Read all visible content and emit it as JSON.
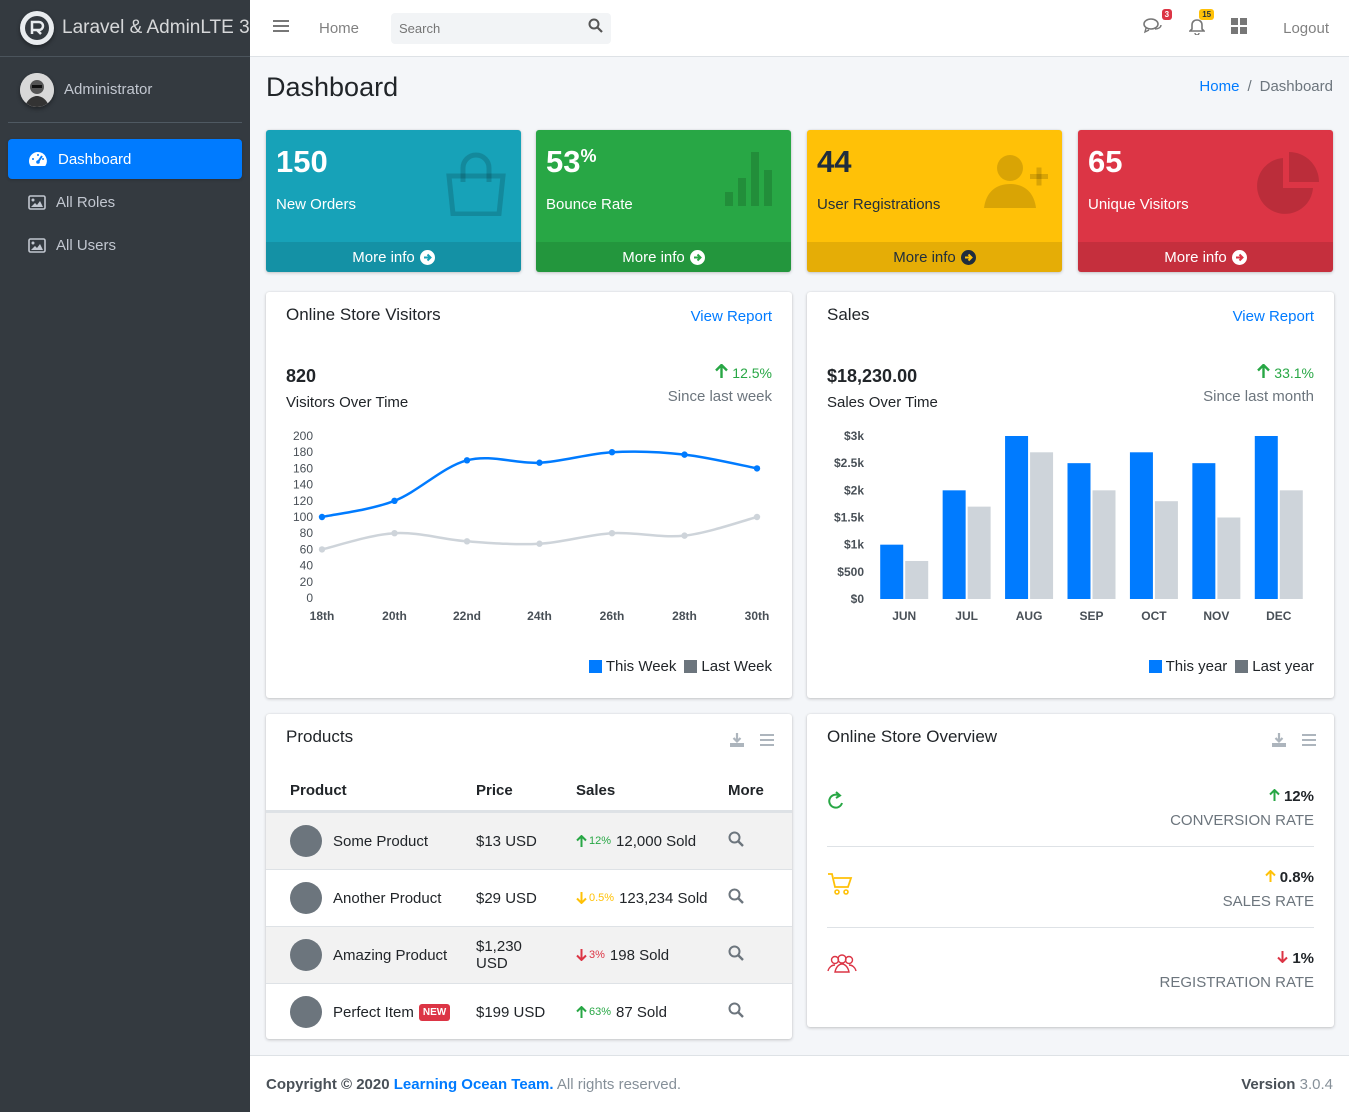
{
  "brand": {
    "title": "Laravel & AdminLTE 3"
  },
  "user": {
    "name": "Administrator"
  },
  "sidebar": {
    "items": [
      {
        "label": "Dashboard",
        "icon": "tachometer-icon"
      },
      {
        "label": "All Roles",
        "icon": "image-icon"
      },
      {
        "label": "All Users",
        "icon": "image-icon"
      }
    ]
  },
  "header": {
    "home": "Home",
    "search_placeholder": "Search",
    "messages_count": "3",
    "notifications_count": "15",
    "logout": "Logout"
  },
  "page": {
    "title": "Dashboard",
    "breadcrumb": [
      "Home",
      "Dashboard"
    ]
  },
  "boxes": [
    {
      "value": "150",
      "suffix": "",
      "label": "New Orders",
      "footer": "More info",
      "color": "#17a2b8"
    },
    {
      "value": "53",
      "suffix": "%",
      "label": "Bounce Rate",
      "footer": "More info",
      "color": "#28a745"
    },
    {
      "value": "44",
      "suffix": "",
      "label": "User Registrations",
      "footer": "More info",
      "color": "#ffc107"
    },
    {
      "value": "65",
      "suffix": "",
      "label": "Unique Visitors",
      "footer": "More info",
      "color": "#dc3545"
    }
  ],
  "visitors": {
    "title": "Online Store Visitors",
    "link": "View Report",
    "total": "820",
    "subtitle": "Visitors Over Time",
    "change": "12.5%",
    "since": "Since last week",
    "legend": [
      "This Week",
      "Last Week"
    ]
  },
  "sales": {
    "title": "Sales",
    "link": "View Report",
    "total": "$18,230.00",
    "subtitle": "Sales Over Time",
    "change": "33.1%",
    "since": "Since last month",
    "legend": [
      "This year",
      "Last year"
    ]
  },
  "chart_data": [
    {
      "type": "line",
      "x": [
        "18th",
        "20th",
        "22nd",
        "24th",
        "26th",
        "28th",
        "30th"
      ],
      "series": [
        {
          "name": "This Week",
          "values": [
            100,
            120,
            170,
            167,
            180,
            177,
            160
          ],
          "color": "#007bff"
        },
        {
          "name": "Last Week",
          "values": [
            60,
            80,
            70,
            67,
            80,
            77,
            100
          ],
          "color": "#ced4da"
        }
      ],
      "yticks": [
        0,
        20,
        40,
        60,
        80,
        100,
        120,
        140,
        160,
        180,
        200
      ],
      "ylim": [
        0,
        200
      ],
      "legend": "bottom-right"
    },
    {
      "type": "bar",
      "categories": [
        "JUN",
        "JUL",
        "AUG",
        "SEP",
        "OCT",
        "NOV",
        "DEC"
      ],
      "series": [
        {
          "name": "This year",
          "values": [
            1000,
            2000,
            3000,
            2500,
            2700,
            2500,
            3000
          ],
          "color": "#007bff"
        },
        {
          "name": "Last year",
          "values": [
            700,
            1700,
            2700,
            2000,
            1800,
            1500,
            2000
          ],
          "color": "#ced4da"
        }
      ],
      "yticks": [
        "$0",
        "$500",
        "$1k",
        "$1.5k",
        "$2k",
        "$2.5k",
        "$3k"
      ],
      "ylim": [
        0,
        3000
      ],
      "legend": "bottom-right"
    }
  ],
  "products": {
    "title": "Products",
    "columns": [
      "Product",
      "Price",
      "Sales",
      "More"
    ],
    "rows": [
      {
        "name": "Some Product",
        "badge": "",
        "price": "$13 USD",
        "trend": "up",
        "pct": "12%",
        "sold": "12,000 Sold"
      },
      {
        "name": "Another Product",
        "badge": "",
        "price": "$29 USD",
        "trend": "down-warn",
        "pct": "0.5%",
        "sold": "123,234 Sold"
      },
      {
        "name": "Amazing Product",
        "badge": "",
        "price": "$1,230 USD",
        "trend": "down",
        "pct": "3%",
        "sold": "198 Sold"
      },
      {
        "name": "Perfect Item",
        "badge": "NEW",
        "price": "$199 USD",
        "trend": "up",
        "pct": "63%",
        "sold": "87 Sold"
      }
    ]
  },
  "overview": {
    "title": "Online Store Overview",
    "items": [
      {
        "value": "12%",
        "label": "CONVERSION RATE",
        "icon": "refresh-icon",
        "color": "#28a745"
      },
      {
        "value": "0.8%",
        "label": "SALES RATE",
        "icon": "cart-icon",
        "color": "#ffc107"
      },
      {
        "value": "1%",
        "label": "REGISTRATION RATE",
        "icon": "users-icon",
        "color": "#dc3545"
      }
    ]
  },
  "footer": {
    "copyright": "Copyright © 2020",
    "team": "Learning Ocean Team.",
    "rights": "All rights reserved.",
    "version_label": "Version",
    "version": "3.0.4"
  }
}
